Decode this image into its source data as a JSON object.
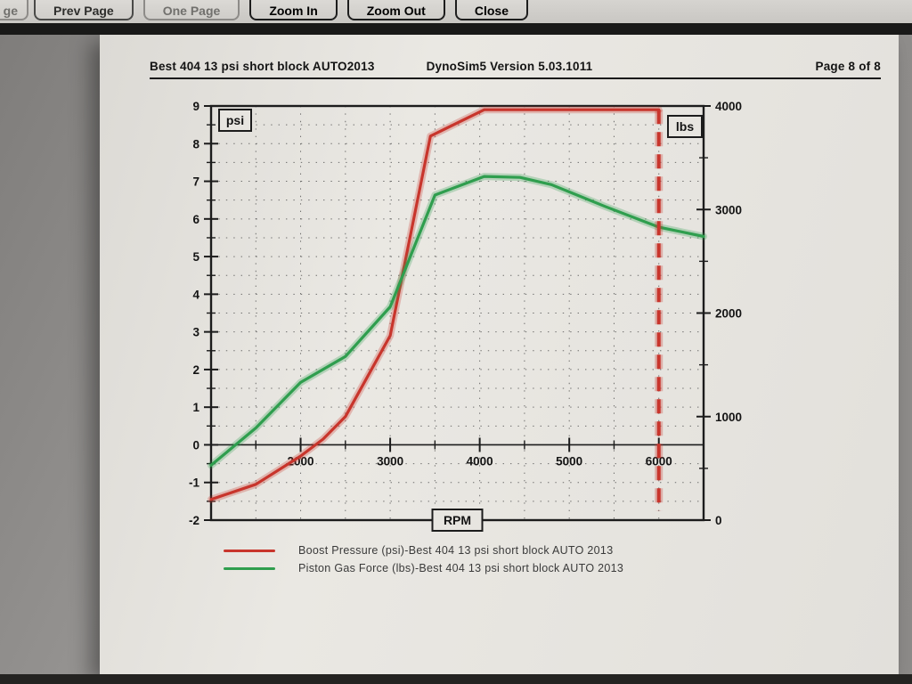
{
  "toolbar": {
    "partial_label": "ge",
    "buttons": [
      {
        "label": "Prev Page",
        "style": "semi"
      },
      {
        "label": "One Page",
        "style": "dim"
      },
      {
        "label": "Zoom In",
        "style": "normal"
      },
      {
        "label": "Zoom Out",
        "style": "normal"
      },
      {
        "label": "Close",
        "style": "normal"
      }
    ]
  },
  "header": {
    "title_left": "Best 404 13 psi short block AUTO2013",
    "title_center": "DynoSim5 Version 5.03.1011",
    "page_indicator": "Page 8 of 8"
  },
  "chart_data": {
    "type": "line",
    "x_axis": {
      "label": "RPM",
      "range": [
        1000,
        6500
      ],
      "ticks": [
        2000,
        3000,
        4000,
        5000,
        6000
      ],
      "minor_step": 500
    },
    "y_left": {
      "label": "psi",
      "range": [
        -2,
        9
      ],
      "ticks": [
        -2,
        -1,
        0,
        1,
        2,
        3,
        4,
        5,
        6,
        7,
        8,
        9
      ],
      "minor_step": 0.5
    },
    "y_right": {
      "label": "lbs",
      "range": [
        0,
        4000
      ],
      "ticks": [
        0,
        1000,
        2000,
        3000,
        4000
      ],
      "minor_step": 500
    },
    "grid": "dotted",
    "series": [
      {
        "name": "Boost Pressure (psi)-Best 404 13 psi short block AUTO 2013",
        "axis": "left",
        "color": "#c8352c",
        "points": [
          [
            1000,
            -1.45
          ],
          [
            1500,
            -1.05
          ],
          [
            2000,
            -0.3
          ],
          [
            2250,
            0.15
          ],
          [
            2500,
            0.75
          ],
          [
            3000,
            2.9
          ],
          [
            3450,
            8.2
          ],
          [
            4050,
            8.9
          ],
          [
            6000,
            8.9
          ]
        ]
      },
      {
        "name": "Piston Gas Force (lbs)-Best 404 13 psi short block AUTO 2013",
        "axis": "right",
        "color": "#2f9e4e",
        "points": [
          [
            1000,
            530
          ],
          [
            1500,
            890
          ],
          [
            2000,
            1330
          ],
          [
            2500,
            1580
          ],
          [
            3000,
            2060
          ],
          [
            3500,
            3140
          ],
          [
            4050,
            3320
          ],
          [
            4450,
            3310
          ],
          [
            4800,
            3240
          ],
          [
            5400,
            3030
          ],
          [
            6000,
            2830
          ],
          [
            6500,
            2740
          ]
        ]
      }
    ],
    "marker_line": {
      "x": 6000,
      "color": "#c8352c",
      "style": "dashed",
      "y_top": 8.9,
      "y_bottom": -1.75
    }
  }
}
